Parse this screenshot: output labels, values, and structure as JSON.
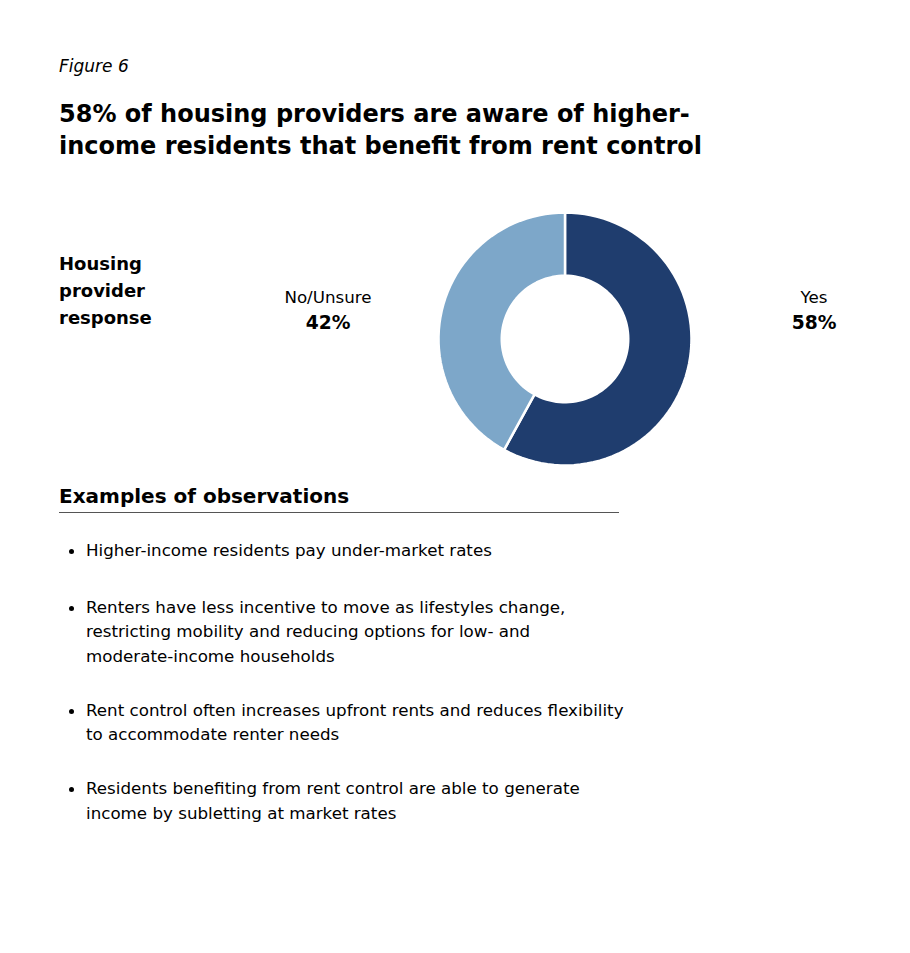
{
  "chart_data": {
    "type": "pie",
    "title": [
      "58% of housing providers are aware of higher-",
      "income residents that benefit from rent control"
    ],
    "categories": [
      "Yes",
      "No/Unsure"
    ],
    "values": [
      58,
      42
    ],
    "value_labels": [
      "58%",
      "42%"
    ],
    "colors": [
      "#1f3d6e",
      "#7da7c9"
    ],
    "annotations": [
      [
        "Figure 6"
      ],
      [
        "Housing",
        "provider",
        "response"
      ],
      [
        "Examples of observations"
      ],
      [
        "Higher-income residents pay under-market rates"
      ],
      [
        "Renters have less incentive to move as lifestyles change,",
        "restricting mobility and reducing options for low- and",
        "moderate-income households"
      ],
      [
        "Rent control often increases upfront rents and reduces flexibility",
        "to accommodate renter needs"
      ],
      [
        "Residents benefiting from rent control are able to generate",
        "income by subletting at market rates"
      ]
    ]
  }
}
